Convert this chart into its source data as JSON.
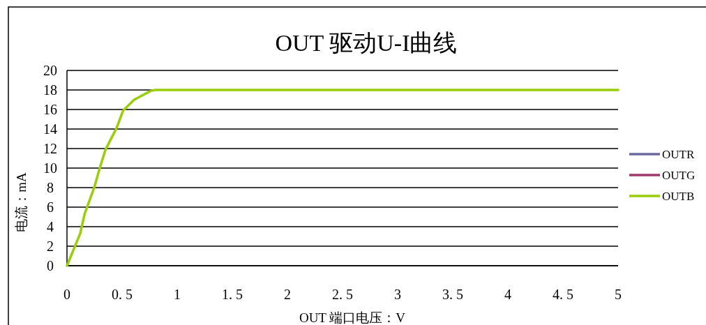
{
  "chart_data": {
    "type": "line",
    "title": "OUT 驱动U-I曲线",
    "xlabel": "OUT 端口电压：V",
    "ylabel": "电流：mA",
    "x": [
      0,
      0.12,
      0.16,
      0.25,
      0.3,
      0.35,
      0.45,
      0.51,
      0.61,
      0.66,
      0.76,
      0.8,
      5
    ],
    "series": [
      {
        "name": "OUTR",
        "color": "#6a6aa0",
        "values": [
          null,
          null,
          null,
          null,
          null,
          null,
          null,
          null,
          null,
          null,
          null,
          null,
          null
        ]
      },
      {
        "name": "OUTG",
        "color": "#a03a6a",
        "values": [
          null,
          null,
          null,
          null,
          null,
          null,
          null,
          null,
          null,
          null,
          null,
          null,
          null
        ]
      },
      {
        "name": "OUTB",
        "color": "#9acd0a",
        "values": [
          0,
          3.3,
          5.3,
          8.1,
          10.1,
          11.9,
          14.1,
          15.9,
          17,
          17.3,
          17.9,
          18,
          18
        ]
      }
    ],
    "xlim": [
      0,
      5
    ],
    "xticks": [
      0,
      {
        "value": 0.5,
        "label": "0. 5"
      },
      1,
      {
        "value": 1.5,
        "label": "1. 5"
      },
      2,
      {
        "value": 2.5,
        "label": "2. 5"
      },
      3,
      {
        "value": 3.5,
        "label": "3. 5"
      },
      4,
      {
        "value": 4.5,
        "label": "4. 5"
      },
      5
    ],
    "ylim": [
      0,
      20
    ],
    "yticks": [
      0,
      2,
      4,
      6,
      8,
      10,
      12,
      14,
      16,
      18,
      20
    ],
    "grid": "y",
    "legend": "right",
    "marker": "none",
    "line_style": "solid"
  }
}
